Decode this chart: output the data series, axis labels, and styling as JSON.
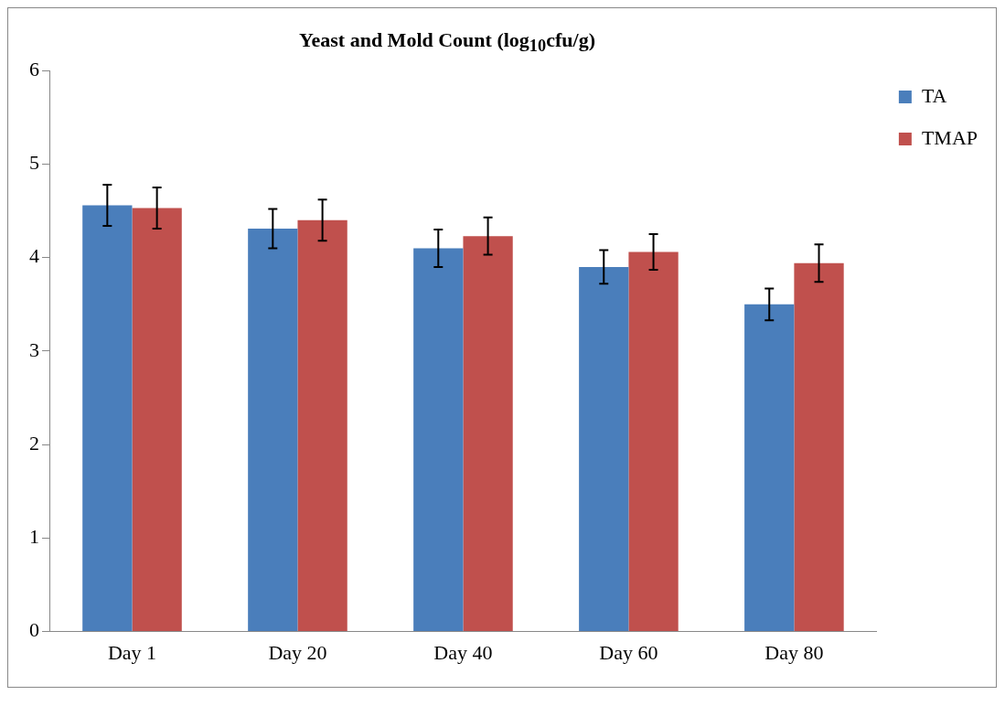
{
  "chart_data": {
    "type": "bar",
    "title": "Yeast and Mold Count (log$_{10}$cfu/g)",
    "categories": [
      "Day 1",
      "Day 20",
      "Day 40",
      "Day 60",
      "Day 80"
    ],
    "series": [
      {
        "name": "TA",
        "color": "#4a7ebb",
        "values": [
          4.56,
          4.31,
          4.1,
          3.9,
          3.5
        ],
        "errors": [
          0.22,
          0.21,
          0.2,
          0.18,
          0.17
        ]
      },
      {
        "name": "TMAP",
        "color": "#c0504d",
        "values": [
          4.53,
          4.4,
          4.23,
          4.06,
          3.94
        ],
        "errors": [
          0.22,
          0.22,
          0.2,
          0.19,
          0.2
        ]
      }
    ],
    "ylim": [
      0,
      6
    ],
    "yticks": [
      0,
      1,
      2,
      3,
      4,
      5,
      6
    ],
    "grid": false,
    "legend": "top right"
  }
}
